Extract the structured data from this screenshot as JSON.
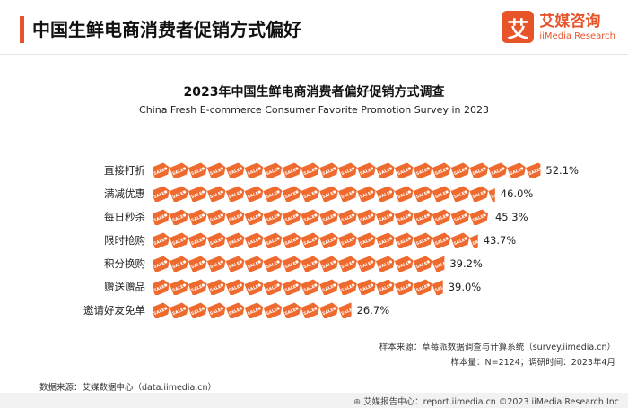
{
  "header": {
    "title": "中国生鲜电商消费者促销方式偏好",
    "accent_color": "#e8542a"
  },
  "brand": {
    "mark": "艾",
    "name_cn": "艾媒咨询",
    "name_en": "iiMedia Research",
    "color": "#e8542a"
  },
  "chart_data": {
    "type": "bar",
    "orientation": "horizontal-pictogram",
    "title": "2023年中国生鲜电商消费者偏好促销方式调查",
    "subtitle": "China Fresh E-commerce Consumer Favorite Promotion Survey in 2023",
    "categories": [
      "直接打折",
      "满减优惠",
      "每日秒杀",
      "限时抢购",
      "积分换购",
      "赠送赠品",
      "邀请好友免单"
    ],
    "values": [
      52.1,
      46.0,
      45.3,
      43.7,
      39.2,
      39.0,
      26.7
    ],
    "value_labels": [
      "52.1%",
      "46.0%",
      "45.3%",
      "43.7%",
      "39.2%",
      "39.0%",
      "26.7%"
    ],
    "unit": "%",
    "xlim": [
      0,
      100
    ],
    "tag_icon_text": "SALE",
    "bar_color": "#ee6a2f"
  },
  "footer": {
    "sample_source": "样本来源：草莓派数据调查与计算系统（survey.iimedia.cn）",
    "sample_size": "样本量：N=2124；调研时间：2023年4月",
    "data_source": "数据来源：艾媒数据中心（data.iimedia.cn）",
    "copyright": "艾媒报告中心：report.iimedia.cn  ©2023  iiMedia Research  Inc"
  }
}
